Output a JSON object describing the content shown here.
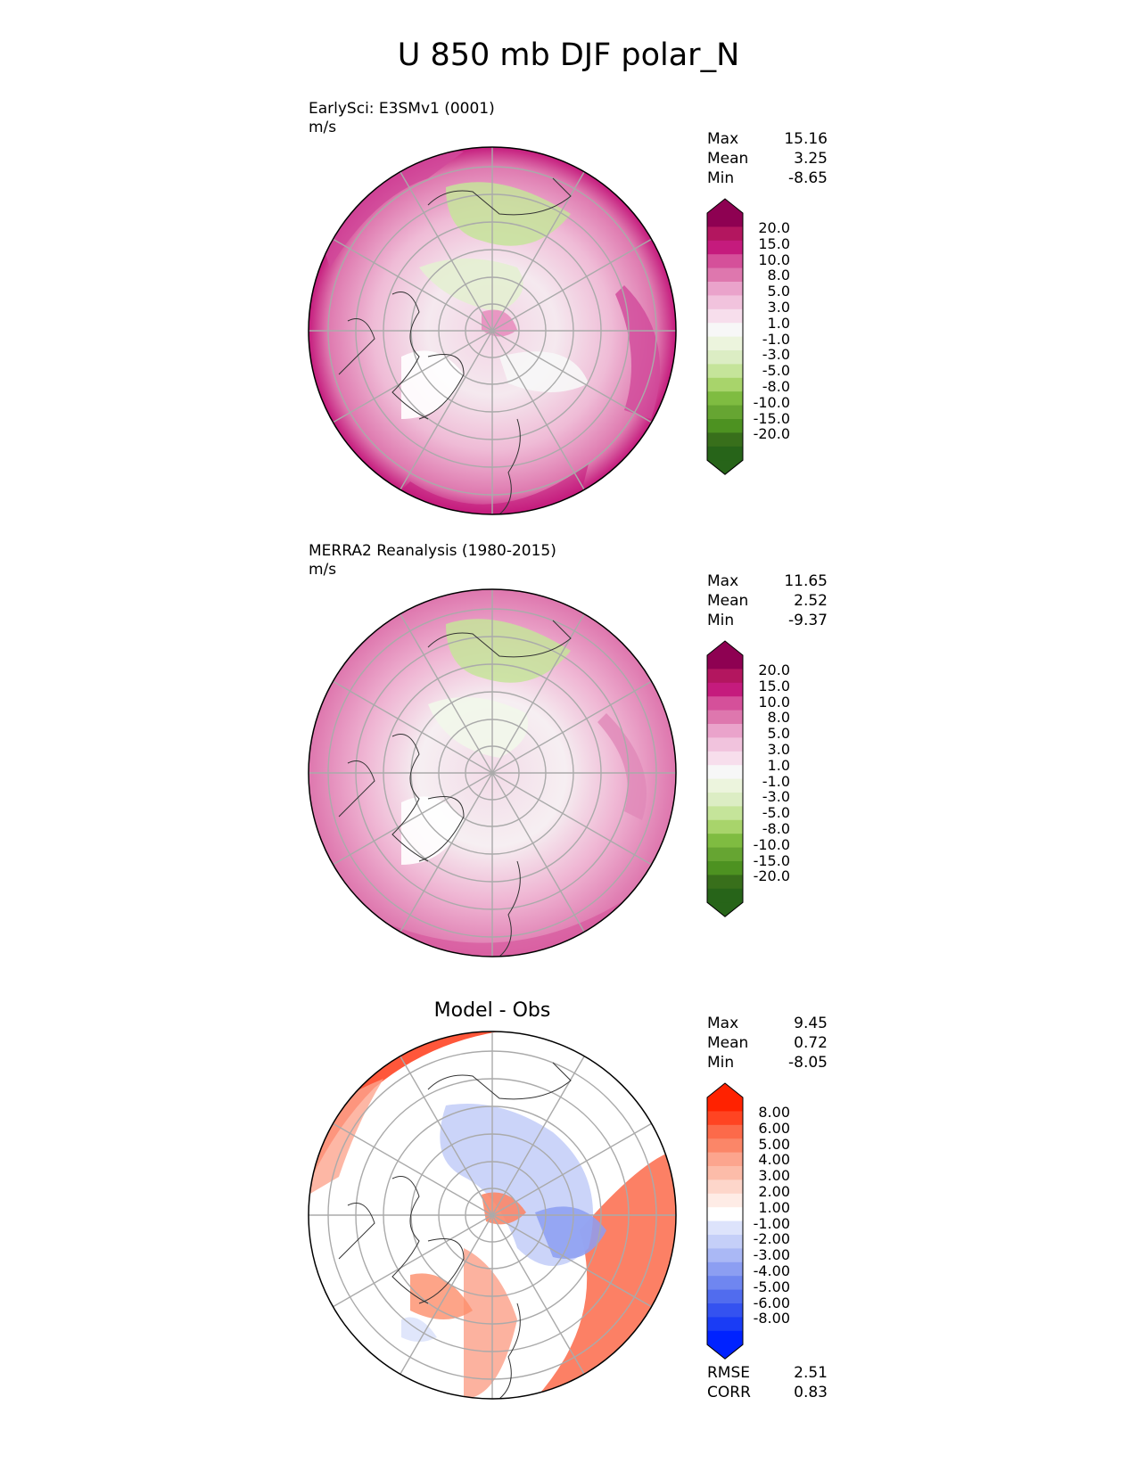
{
  "title": "U 850 mb DJF polar_N",
  "panels": [
    {
      "id": "test",
      "label_lines": [
        "EarlySci: E3SMv1 (0001)",
        "m/s"
      ],
      "stats": [
        [
          "Max",
          "15.16"
        ],
        [
          "Mean",
          "3.25"
        ],
        [
          "Min",
          "-8.65"
        ]
      ],
      "colorbar": {
        "labels": [
          "20.0",
          "15.0",
          "10.0",
          "8.0",
          "5.0",
          "3.0",
          "1.0",
          "-1.0",
          "-3.0",
          "-5.0",
          "-8.0",
          "-10.0",
          "-15.0",
          "-20.0"
        ],
        "colors": [
          "#8e0152",
          "#b3165f",
          "#c51b7d",
          "#d5509a",
          "#de77ae",
          "#eaa3cb",
          "#f1c3dd",
          "#f7deec",
          "#f7f7f7",
          "#ecf4dd",
          "#dcedc4",
          "#c5e49a",
          "#a8d46b",
          "#7fbc41",
          "#66a532",
          "#4d9221",
          "#386f1b",
          "#276419"
        ]
      }
    },
    {
      "id": "ref",
      "label_lines": [
        "MERRA2 Reanalysis (1980-2015)",
        "m/s"
      ],
      "stats": [
        [
          "Max",
          "11.65"
        ],
        [
          "Mean",
          "2.52"
        ],
        [
          "Min",
          "-9.37"
        ]
      ],
      "colorbar": {
        "labels": [
          "20.0",
          "15.0",
          "10.0",
          "8.0",
          "5.0",
          "3.0",
          "1.0",
          "-1.0",
          "-3.0",
          "-5.0",
          "-8.0",
          "-10.0",
          "-15.0",
          "-20.0"
        ],
        "colors": [
          "#8e0152",
          "#b3165f",
          "#c51b7d",
          "#d5509a",
          "#de77ae",
          "#eaa3cb",
          "#f1c3dd",
          "#f7deec",
          "#f7f7f7",
          "#ecf4dd",
          "#dcedc4",
          "#c5e49a",
          "#a8d46b",
          "#7fbc41",
          "#66a532",
          "#4d9221",
          "#386f1b",
          "#276419"
        ]
      }
    },
    {
      "id": "diff",
      "title": "Model - Obs",
      "stats": [
        [
          "Max",
          "9.45"
        ],
        [
          "Mean",
          "0.72"
        ],
        [
          "Min",
          "-8.05"
        ]
      ],
      "colorbar": {
        "labels": [
          "8.00",
          "6.00",
          "5.00",
          "4.00",
          "3.00",
          "2.00",
          "1.00",
          "-1.00",
          "-2.00",
          "-3.00",
          "-4.00",
          "-5.00",
          "-6.00",
          "-8.00"
        ],
        "colors": [
          "#ff2200",
          "#ff4422",
          "#fc6a4a",
          "#fb8668",
          "#fca58e",
          "#fcbca9",
          "#fdd6ca",
          "#feece6",
          "#ffffff",
          "#dde3fb",
          "#c5cff8",
          "#aab8f5",
          "#8c9ef2",
          "#6f86f0",
          "#516cee",
          "#3452f0",
          "#1a3cf5",
          "#0022ff"
        ]
      },
      "extra_stats": [
        [
          "RMSE",
          "2.51"
        ],
        [
          "CORR",
          "0.83"
        ]
      ]
    }
  ]
}
